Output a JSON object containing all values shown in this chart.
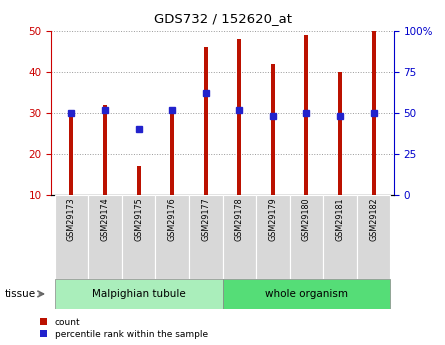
{
  "title": "GDS732 / 152620_at",
  "samples": [
    "GSM29173",
    "GSM29174",
    "GSM29175",
    "GSM29176",
    "GSM29177",
    "GSM29178",
    "GSM29179",
    "GSM29180",
    "GSM29181",
    "GSM29182"
  ],
  "counts": [
    30,
    32,
    17,
    31,
    46,
    48,
    42,
    49,
    40,
    50
  ],
  "percentile_ranks": [
    50,
    52,
    40,
    52,
    62,
    52,
    48,
    50,
    48,
    50
  ],
  "ylim_left": [
    10,
    50
  ],
  "ylim_right": [
    0,
    100
  ],
  "yticks_left": [
    10,
    20,
    30,
    40,
    50
  ],
  "ytick_labels_right": [
    "0",
    "25",
    "50",
    "75",
    "100%"
  ],
  "bar_color": "#bb1100",
  "dot_color": "#2222cc",
  "bar_width": 0.12,
  "tissue_groups": [
    {
      "label": "Malpighian tubule",
      "start": 0,
      "end": 4,
      "color": "#aaeebb"
    },
    {
      "label": "whole organism",
      "start": 5,
      "end": 9,
      "color": "#55dd77"
    }
  ],
  "tissue_label": "tissue",
  "legend_items": [
    {
      "label": "count",
      "color": "#bb1100"
    },
    {
      "label": "percentile rank within the sample",
      "color": "#2222cc"
    }
  ],
  "grid_color": "#999999",
  "background_plot": "#ffffff",
  "ylabel_left_color": "#cc0000",
  "ylabel_right_color": "#0000cc"
}
